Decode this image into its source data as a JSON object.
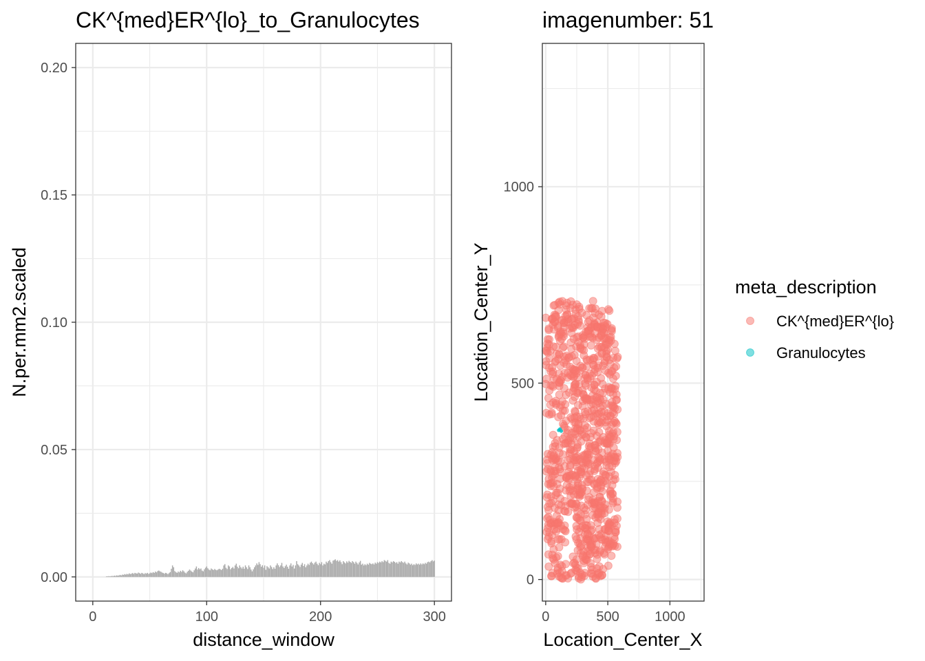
{
  "chart_data": [
    {
      "type": "bar",
      "title": "CK^{med}ER^{lo}_to_Granulocytes",
      "xlabel": "distance_window",
      "ylabel": "N.per.mm2.scaled",
      "xlim": [
        -15,
        315
      ],
      "ylim": [
        -0.0095,
        0.2095
      ],
      "x_ticks": [
        0,
        100,
        200,
        300
      ],
      "x_tick_labels": [
        "0",
        "100",
        "200",
        "300"
      ],
      "y_ticks": [
        0,
        0.05,
        0.1,
        0.15,
        0.2
      ],
      "y_tick_labels": [
        "0.00",
        "0.05",
        "0.10",
        "0.15",
        "0.20"
      ],
      "bar_color": "#aaaaaa",
      "x_start": 12,
      "x_step": 1,
      "values": [
        0.0002,
        0.0002,
        0.0003,
        0.0002,
        0.0003,
        0.0004,
        0.0003,
        0.0005,
        0.0004,
        0.0006,
        0.0005,
        0.0006,
        0.0008,
        0.0006,
        0.0009,
        0.0008,
        0.0011,
        0.0009,
        0.0012,
        0.001,
        0.0014,
        0.0011,
        0.0013,
        0.0015,
        0.0012,
        0.0016,
        0.0014,
        0.0013,
        0.0017,
        0.0015,
        0.0012,
        0.0016,
        0.0014,
        0.0011,
        0.0015,
        0.0013,
        0.0016,
        0.0012,
        0.0014,
        0.0017,
        0.0015,
        0.0019,
        0.0016,
        0.0021,
        0.0018,
        0.0023,
        0.0025,
        0.0022,
        0.002,
        0.0017,
        0.0015,
        0.0013,
        0.0016,
        0.0014,
        0.0011,
        0.0015,
        0.0019,
        0.0032,
        0.0045,
        0.0038,
        0.0023,
        0.0019,
        0.0016,
        0.0021,
        0.0018,
        0.0024,
        0.002,
        0.0026,
        0.0022,
        0.0017,
        0.0014,
        0.002,
        0.0024,
        0.0029,
        0.0025,
        0.0021,
        0.0018,
        0.0026,
        0.0033,
        0.0041,
        0.0029,
        0.0035,
        0.003,
        0.0033,
        0.0025,
        0.0022,
        0.003,
        0.0036,
        0.0041,
        0.0034,
        0.0029,
        0.0026,
        0.0033,
        0.003,
        0.0027,
        0.0031,
        0.0028,
        0.0026,
        0.0029,
        0.0032,
        0.003,
        0.0027,
        0.0032,
        0.0045,
        0.005,
        0.0036,
        0.0031,
        0.0045,
        0.0041,
        0.003,
        0.0035,
        0.0039,
        0.0033,
        0.0045,
        0.0052,
        0.004,
        0.0034,
        0.0045,
        0.0038,
        0.0033,
        0.004,
        0.0032,
        0.0045,
        0.0038,
        0.0031,
        0.0045,
        0.0038,
        0.0029,
        0.0022,
        0.003,
        0.0038,
        0.0045,
        0.0053,
        0.0047,
        0.0058,
        0.005,
        0.004,
        0.0046,
        0.0036,
        0.0045,
        0.0028,
        0.0042,
        0.0038,
        0.0033,
        0.0045,
        0.0039,
        0.0031,
        0.0038,
        0.0032,
        0.0045,
        0.0053,
        0.0046,
        0.0039,
        0.0045,
        0.0055,
        0.0041,
        0.0035,
        0.0042,
        0.0048,
        0.004,
        0.0032,
        0.0045,
        0.0053,
        0.0041,
        0.0047,
        0.0033,
        0.0045,
        0.0062,
        0.005,
        0.0045,
        0.0039,
        0.0048,
        0.0055,
        0.0043,
        0.005,
        0.0038,
        0.0045,
        0.0052,
        0.0047,
        0.0056,
        0.006,
        0.0054,
        0.0049,
        0.0056,
        0.006,
        0.0052,
        0.0046,
        0.0055,
        0.005,
        0.0058,
        0.0045,
        0.0052,
        0.0049,
        0.006,
        0.0055,
        0.0062,
        0.0066,
        0.0058,
        0.0052,
        0.0064,
        0.0066,
        0.0069,
        0.0063,
        0.0066,
        0.006,
        0.0065,
        0.0058,
        0.005,
        0.0062,
        0.0057,
        0.0053,
        0.0061,
        0.0056,
        0.0063,
        0.0059,
        0.0055,
        0.0062,
        0.0058,
        0.0052,
        0.006,
        0.0055,
        0.0049,
        0.0057,
        0.0063,
        0.0048,
        0.0052,
        0.0045,
        0.005,
        0.0046,
        0.0052,
        0.0048,
        0.0055,
        0.0052,
        0.005,
        0.0053,
        0.0049,
        0.0056,
        0.0052,
        0.0058,
        0.0055,
        0.006,
        0.0057,
        0.0062,
        0.0058,
        0.0066,
        0.0063,
        0.006,
        0.0066,
        0.0055,
        0.0052,
        0.006,
        0.0057,
        0.0062,
        0.0059,
        0.0055,
        0.0058,
        0.0052,
        0.006,
        0.0057,
        0.0062,
        0.0058,
        0.0055,
        0.006,
        0.0053,
        0.0049,
        0.0056,
        0.0053,
        0.0048,
        0.0052,
        0.0046,
        0.005,
        0.0047,
        0.0053,
        0.0049,
        0.0052,
        0.0048,
        0.0053,
        0.0049,
        0.0053,
        0.005,
        0.0055,
        0.0052,
        0.0058,
        0.006,
        0.0057,
        0.0062,
        0.0066,
        0.0061,
        0.0064
      ],
      "grid": true
    },
    {
      "type": "scatter",
      "title": "imagenumber:  51",
      "xlabel": "Location_Center_X",
      "ylabel": "Location_Center_Y",
      "xlim": [
        -27,
        1275
      ],
      "ylim": [
        -55,
        1365
      ],
      "x_ticks": [
        0,
        500,
        1000
      ],
      "x_tick_labels": [
        "0",
        "500",
        "1000"
      ],
      "y_ticks": [
        0,
        500,
        1000
      ],
      "y_tick_labels": [
        "0",
        "500",
        "1000"
      ],
      "grid": true,
      "legend": {
        "title": "meta_description",
        "position": "right",
        "entries": [
          {
            "label": "CK^{med}ER^{lo}",
            "color": "#F8766D"
          },
          {
            "label": "Granulocytes",
            "color": "#00BFC4"
          }
        ]
      },
      "point_opacity": 0.5,
      "point_groups": [
        {
          "series": "CK^{med}ER^{lo}",
          "shape": "filled-region",
          "x_range": [
            0,
            580
          ],
          "y_range": [
            0,
            710
          ],
          "approx_count": 1000
        },
        {
          "series": "Granulocytes",
          "points": [
            [
              105,
              380
            ],
            [
              115,
              383
            ],
            [
              125,
              378
            ]
          ]
        }
      ]
    }
  ]
}
